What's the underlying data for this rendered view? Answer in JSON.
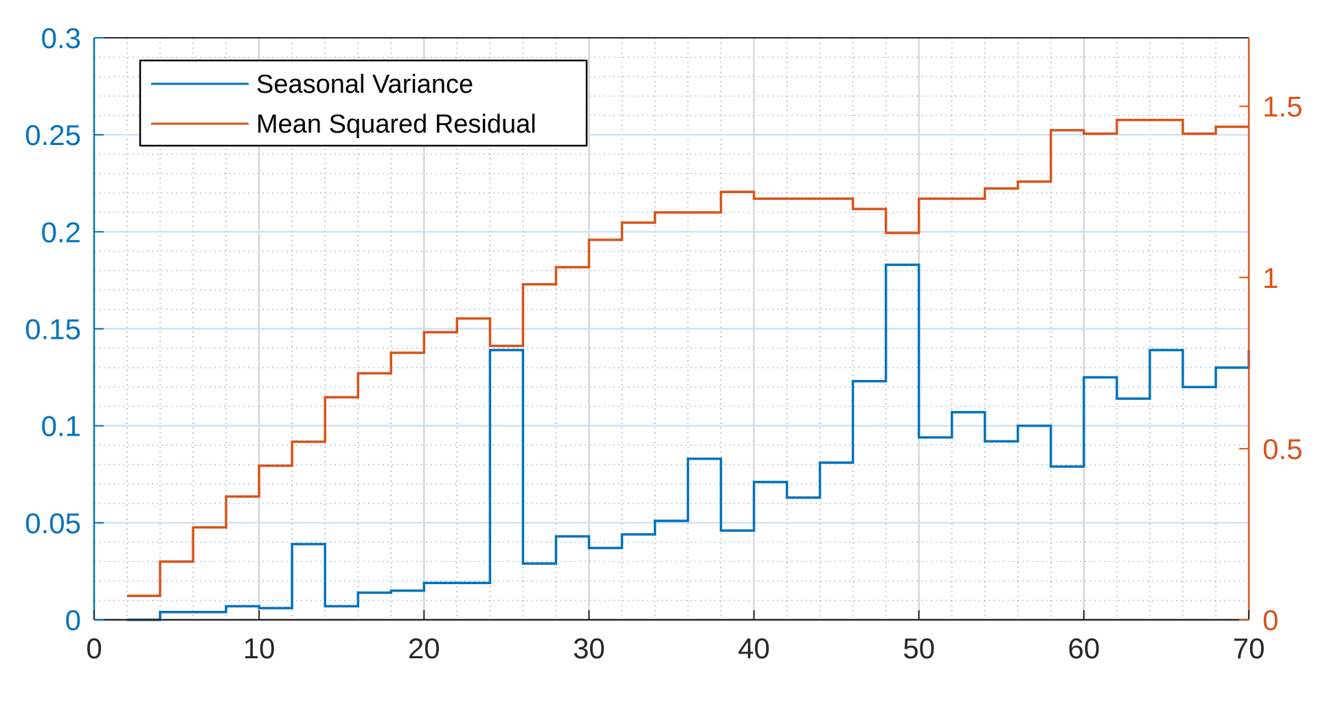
{
  "chart_data": {
    "type": "line",
    "step": true,
    "title": "",
    "xlabel": "",
    "ylabel_left": "",
    "ylabel_right": "",
    "xlim": [
      0,
      70
    ],
    "ylim_left": [
      0,
      0.3
    ],
    "ylim_right": [
      0,
      1.7
    ],
    "grid": true,
    "minor_grid": true,
    "legend_position": "top-left",
    "x_ticks": [
      0,
      10,
      20,
      30,
      40,
      50,
      60,
      70
    ],
    "x_tick_labels": [
      "0",
      "10",
      "20",
      "30",
      "40",
      "50",
      "60",
      "70"
    ],
    "y_left_ticks": [
      0,
      0.05,
      0.1,
      0.15,
      0.2,
      0.25,
      0.3
    ],
    "y_left_tick_labels": [
      "0",
      "0.05",
      "0.1",
      "0.15",
      "0.2",
      "0.25",
      "0.3"
    ],
    "y_right_ticks": [
      0,
      0.5,
      1,
      1.5
    ],
    "y_right_tick_labels": [
      "0",
      "0.5",
      "1",
      "1.5"
    ],
    "x": [
      2,
      4,
      6,
      8,
      10,
      12,
      14,
      16,
      18,
      20,
      22,
      24,
      26,
      28,
      30,
      32,
      34,
      36,
      38,
      40,
      42,
      44,
      46,
      48,
      50,
      52,
      54,
      56,
      58,
      60,
      62,
      64,
      66,
      68,
      70
    ],
    "series": [
      {
        "name": "Seasonal Variance",
        "axis": "left",
        "color": "#0072BD",
        "values": [
          0.0,
          0.004,
          0.004,
          0.007,
          0.006,
          0.039,
          0.007,
          0.014,
          0.015,
          0.019,
          0.019,
          0.139,
          0.029,
          0.043,
          0.037,
          0.044,
          0.051,
          0.083,
          0.046,
          0.071,
          0.063,
          0.081,
          0.123,
          0.183,
          0.094,
          0.107,
          0.092,
          0.1,
          0.079,
          0.125,
          0.114,
          0.139,
          0.12,
          0.13,
          0.139
        ]
      },
      {
        "name": "Mean Squared Residual",
        "axis": "right",
        "color": "#D95319",
        "values": [
          0.07,
          0.17,
          0.27,
          0.36,
          0.45,
          0.52,
          0.65,
          0.72,
          0.78,
          0.84,
          0.88,
          0.8,
          0.98,
          1.03,
          1.11,
          1.16,
          1.19,
          1.19,
          1.25,
          1.23,
          1.23,
          1.23,
          1.2,
          1.13,
          1.23,
          1.23,
          1.26,
          1.28,
          1.43,
          1.42,
          1.46,
          1.46,
          1.42,
          1.44,
          1.44
        ]
      }
    ]
  }
}
